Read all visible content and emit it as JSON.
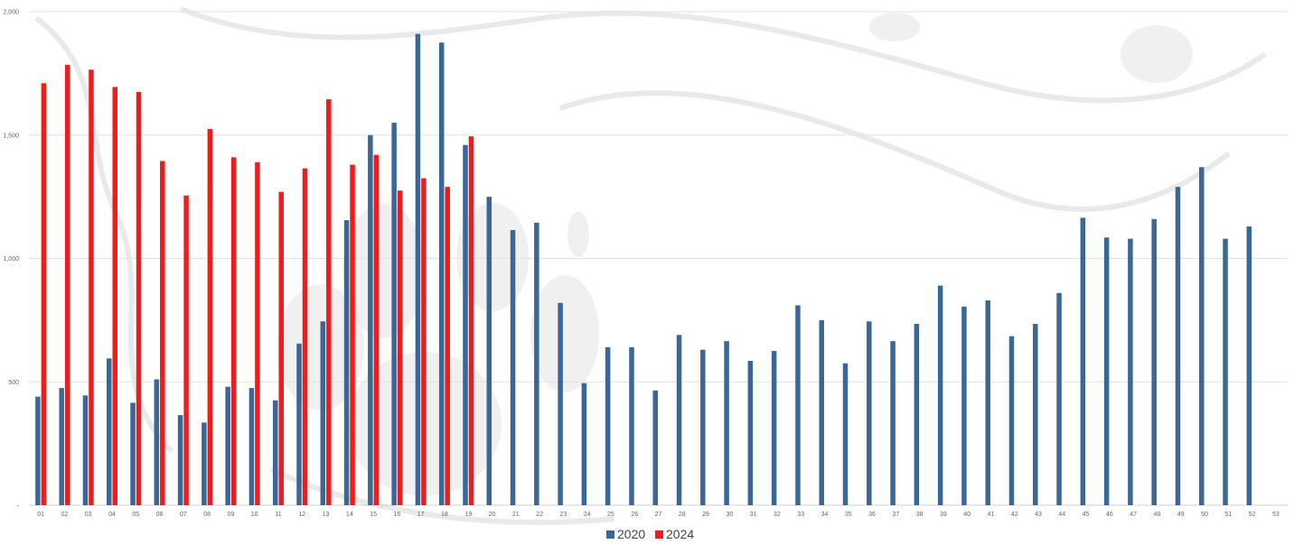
{
  "chart_data": {
    "type": "bar",
    "title": "",
    "xlabel": "",
    "ylabel": "",
    "ylim": [
      0,
      2000
    ],
    "yticks": [
      0,
      500,
      1000,
      1500,
      2000
    ],
    "ytick_labels": [
      "-",
      "500",
      "1,000",
      "1,500",
      "2,000"
    ],
    "grid": true,
    "legend_position": "bottom",
    "categories": [
      "01",
      "02",
      "03",
      "04",
      "05",
      "06",
      "07",
      "08",
      "09",
      "10",
      "11",
      "12",
      "13",
      "14",
      "15",
      "16",
      "17",
      "18",
      "19",
      "20",
      "21",
      "22",
      "23",
      "24",
      "25",
      "26",
      "27",
      "28",
      "29",
      "30",
      "31",
      "32",
      "33",
      "34",
      "35",
      "36",
      "37",
      "38",
      "39",
      "40",
      "41",
      "42",
      "43",
      "44",
      "45",
      "46",
      "47",
      "48",
      "49",
      "50",
      "51",
      "52",
      "53"
    ],
    "series": [
      {
        "name": "2020",
        "color": "#3a6796",
        "values": [
          440,
          475,
          445,
          595,
          415,
          510,
          365,
          335,
          480,
          475,
          425,
          655,
          745,
          1155,
          1500,
          1550,
          1910,
          1875,
          1460,
          1250,
          1115,
          1145,
          820,
          495,
          640,
          640,
          465,
          690,
          630,
          665,
          585,
          625,
          810,
          750,
          575,
          745,
          665,
          735,
          890,
          805,
          830,
          685,
          735,
          860,
          1165,
          1085,
          1080,
          1160,
          1290,
          1370,
          1080,
          1130,
          null
        ]
      },
      {
        "name": "2024",
        "color": "#f01c1c",
        "values": [
          1710,
          1785,
          1765,
          1695,
          1675,
          1395,
          1255,
          1525,
          1410,
          1390,
          1270,
          1365,
          1645,
          1380,
          1420,
          1275,
          1325,
          1290,
          1495,
          null,
          null,
          null,
          null,
          null,
          null,
          null,
          null,
          null,
          null,
          null,
          null,
          null,
          null,
          null,
          null,
          null,
          null,
          null,
          null,
          null,
          null,
          null,
          null,
          null,
          null,
          null,
          null,
          null,
          null,
          null,
          null,
          null,
          null
        ]
      }
    ]
  }
}
